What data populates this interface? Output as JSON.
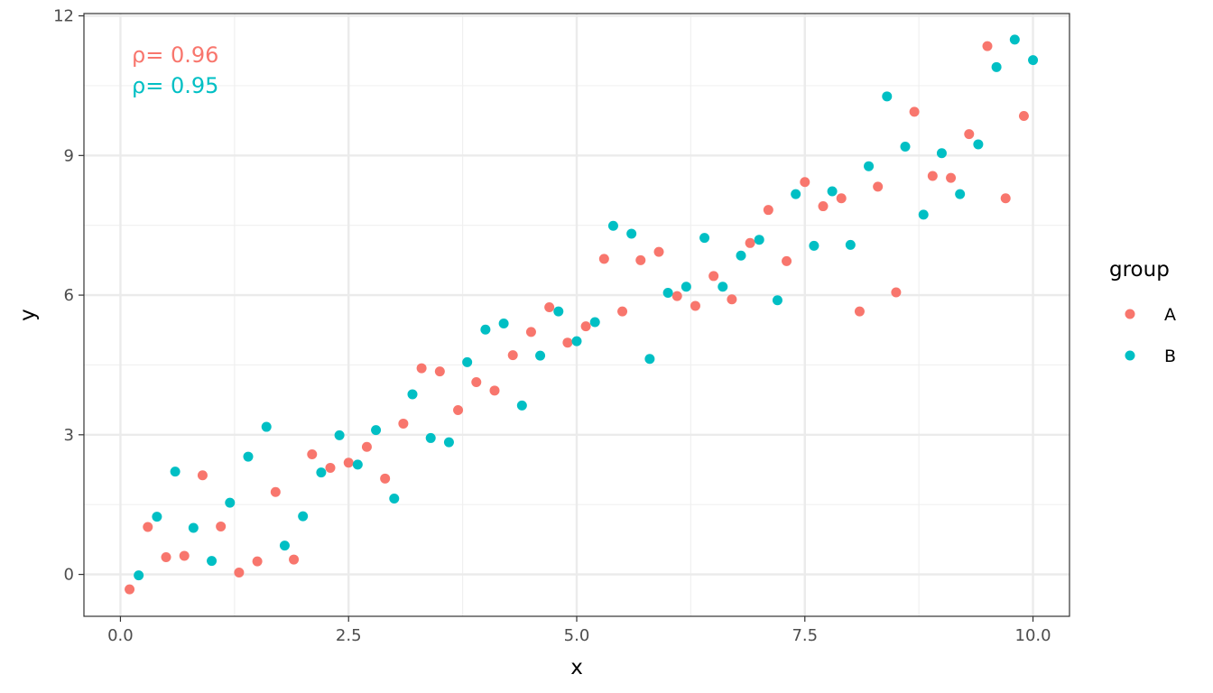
{
  "chart_data": {
    "type": "scatter",
    "xlabel": "x",
    "ylabel": "y",
    "xlim": [
      -0.4,
      10.4
    ],
    "ylim": [
      -0.9,
      12.05
    ],
    "x_ticks": [
      0,
      2.5,
      5,
      7.5,
      10
    ],
    "x_tick_labels": [
      "0.0",
      "2.5",
      "5.0",
      "7.5",
      "10.0"
    ],
    "y_ticks": [
      0,
      3,
      6,
      9,
      12
    ],
    "y_tick_labels": [
      "0",
      "3",
      "6",
      "9",
      "12"
    ],
    "grid": true,
    "legend": {
      "title": "group",
      "placement": "right"
    },
    "annotations": [
      {
        "text": "ρ= 0.96",
        "series": "A"
      },
      {
        "text": "ρ= 0.95",
        "series": "B"
      }
    ],
    "series": [
      {
        "name": "A",
        "color": "#F8766D",
        "points": [
          [
            0.1,
            -0.32
          ],
          [
            0.3,
            1.02
          ],
          [
            0.5,
            0.37
          ],
          [
            0.7,
            0.4
          ],
          [
            0.9,
            2.13
          ],
          [
            1.1,
            1.03
          ],
          [
            1.3,
            0.04
          ],
          [
            1.5,
            0.28
          ],
          [
            1.7,
            1.77
          ],
          [
            1.9,
            0.32
          ],
          [
            2.1,
            2.58
          ],
          [
            2.3,
            2.29
          ],
          [
            2.5,
            2.4
          ],
          [
            2.7,
            2.74
          ],
          [
            2.9,
            2.06
          ],
          [
            3.1,
            3.24
          ],
          [
            3.3,
            4.43
          ],
          [
            3.5,
            4.36
          ],
          [
            3.7,
            3.53
          ],
          [
            3.9,
            4.13
          ],
          [
            4.1,
            3.95
          ],
          [
            4.3,
            4.71
          ],
          [
            4.5,
            5.21
          ],
          [
            4.7,
            5.74
          ],
          [
            4.9,
            4.98
          ],
          [
            5.1,
            5.33
          ],
          [
            5.3,
            6.78
          ],
          [
            5.5,
            5.65
          ],
          [
            5.7,
            6.75
          ],
          [
            5.9,
            6.93
          ],
          [
            6.1,
            5.98
          ],
          [
            6.3,
            5.77
          ],
          [
            6.5,
            6.41
          ],
          [
            6.7,
            5.91
          ],
          [
            6.9,
            7.12
          ],
          [
            7.1,
            7.83
          ],
          [
            7.3,
            6.73
          ],
          [
            7.5,
            8.43
          ],
          [
            7.7,
            7.91
          ],
          [
            7.9,
            8.08
          ],
          [
            8.1,
            5.65
          ],
          [
            8.3,
            8.33
          ],
          [
            8.5,
            6.06
          ],
          [
            8.7,
            9.94
          ],
          [
            8.9,
            8.56
          ],
          [
            9.1,
            8.52
          ],
          [
            9.3,
            9.46
          ],
          [
            9.5,
            11.35
          ],
          [
            9.7,
            8.08
          ],
          [
            9.9,
            9.85
          ]
        ]
      },
      {
        "name": "B",
        "color": "#00BFC4",
        "points": [
          [
            0.2,
            -0.02
          ],
          [
            0.4,
            1.24
          ],
          [
            0.6,
            2.21
          ],
          [
            0.8,
            1.0
          ],
          [
            1.0,
            0.29
          ],
          [
            1.2,
            1.54
          ],
          [
            1.4,
            2.53
          ],
          [
            1.6,
            3.17
          ],
          [
            1.8,
            0.62
          ],
          [
            2.0,
            1.25
          ],
          [
            2.2,
            2.19
          ],
          [
            2.4,
            2.99
          ],
          [
            2.6,
            2.36
          ],
          [
            2.8,
            3.1
          ],
          [
            3.0,
            1.63
          ],
          [
            3.2,
            3.87
          ],
          [
            3.4,
            2.93
          ],
          [
            3.6,
            2.84
          ],
          [
            3.8,
            4.56
          ],
          [
            4.0,
            5.26
          ],
          [
            4.2,
            5.39
          ],
          [
            4.4,
            3.63
          ],
          [
            4.6,
            4.7
          ],
          [
            4.8,
            5.65
          ],
          [
            5.0,
            5.01
          ],
          [
            5.2,
            5.42
          ],
          [
            5.4,
            7.49
          ],
          [
            5.6,
            7.32
          ],
          [
            5.8,
            4.63
          ],
          [
            6.0,
            6.05
          ],
          [
            6.2,
            6.18
          ],
          [
            6.4,
            7.23
          ],
          [
            6.6,
            6.18
          ],
          [
            6.8,
            6.85
          ],
          [
            7.0,
            7.19
          ],
          [
            7.2,
            5.89
          ],
          [
            7.4,
            8.17
          ],
          [
            7.6,
            7.06
          ],
          [
            7.8,
            8.23
          ],
          [
            8.0,
            7.08
          ],
          [
            8.2,
            8.77
          ],
          [
            8.4,
            10.27
          ],
          [
            8.6,
            9.19
          ],
          [
            8.8,
            7.73
          ],
          [
            9.0,
            9.05
          ],
          [
            9.2,
            8.17
          ],
          [
            9.4,
            9.24
          ],
          [
            9.6,
            10.9
          ],
          [
            9.8,
            11.49
          ],
          [
            10.0,
            11.05
          ]
        ]
      }
    ]
  }
}
